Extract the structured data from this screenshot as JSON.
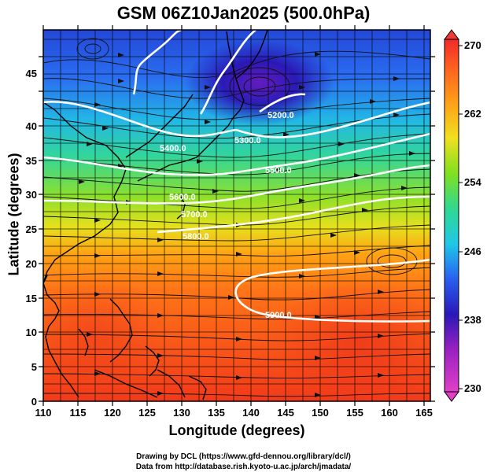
{
  "title": "GSM 06Z10Jan2025 (500.0hPa)",
  "x_axis": {
    "label": "Longitude (degrees)",
    "ticks": [
      "110",
      "115",
      "120",
      "125",
      "130",
      "135",
      "140",
      "145",
      "150",
      "155",
      "160",
      "165"
    ]
  },
  "y_axis": {
    "label": "Latitude  (degrees)",
    "ticks": [
      "0",
      "5",
      "10",
      "15",
      "20",
      "25",
      "30",
      "35",
      "40",
      "45"
    ]
  },
  "colorbar": {
    "ticks": [
      "230",
      "238",
      "246",
      "254",
      "262",
      "270"
    ]
  },
  "contour_labels": [
    "5200.0",
    "5300.0",
    "5400.0",
    "5500.0",
    "5600.0",
    "5700.0",
    "5800.0",
    "5900.0"
  ],
  "credits": {
    "line1": "Drawing by DCL (https://www.gfd-dennou.org/library/dcl/)",
    "line2": "Data from http://database.rish.kyoto-u.ac.jp/arch/jmadata/"
  }
}
